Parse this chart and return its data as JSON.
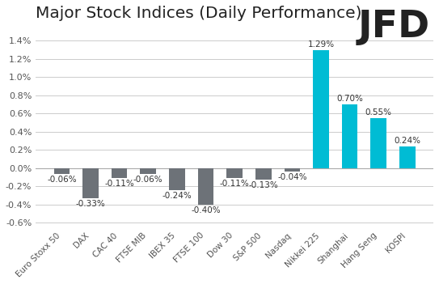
{
  "categories": [
    "Euro Stoxx 50",
    "DAX",
    "CAC 40",
    "FTSE MIB",
    "IBEX 35",
    "FTSE 100",
    "Dow 30",
    "S&P 500",
    "Nasdaq",
    "Nikkei 225",
    "Shanghai",
    "Hang Seng",
    "KOSPI"
  ],
  "values": [
    -0.06,
    -0.33,
    -0.11,
    -0.06,
    -0.24,
    -0.4,
    -0.11,
    -0.13,
    -0.04,
    1.29,
    0.7,
    0.55,
    0.24
  ],
  "bar_color_negative": "#6d7278",
  "bar_color_positive": "#00bcd4",
  "title": "Major Stock Indices (Daily Performance)",
  "title_fontsize": 14.5,
  "ylim": [
    -0.65,
    1.55
  ],
  "yticks": [
    -0.6,
    -0.4,
    -0.2,
    0.0,
    0.2,
    0.4,
    0.6,
    0.8,
    1.0,
    1.2,
    1.4
  ],
  "background_color": "#ffffff",
  "grid_color": "#cccccc",
  "label_fontsize": 7.5,
  "tick_fontsize": 8.0,
  "logo_text": "JFD",
  "logo_fontsize": 34,
  "bar_width": 0.55
}
